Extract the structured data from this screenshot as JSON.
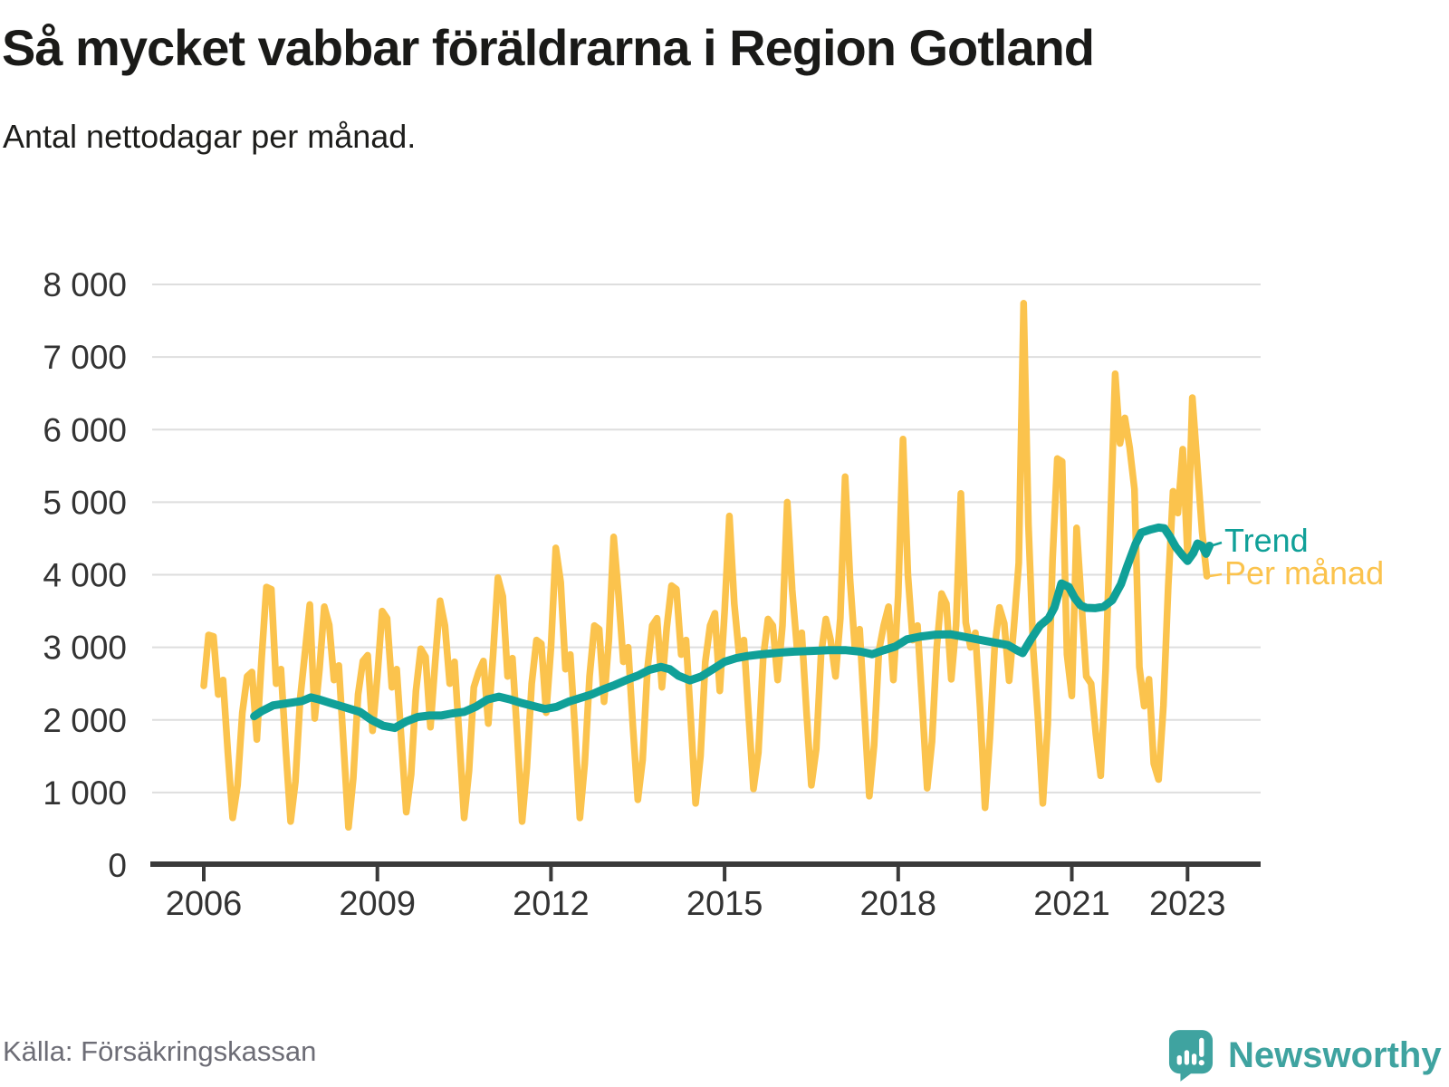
{
  "title": "Så mycket vabbar föräldrarna i Region Gotland",
  "subtitle": "Antal nettodagar per månad.",
  "source": "Källa: Försäkringskassan",
  "brand": {
    "name": "Newsworthy",
    "color": "#3fa3a0"
  },
  "chart_data": {
    "type": "line",
    "title": "Så mycket vabbar föräldrarna i Region Gotland",
    "xlabel": "",
    "ylabel": "Antal nettodagar per månad",
    "ylim": [
      0,
      8000
    ],
    "xlim": [
      2005,
      2024.2
    ],
    "grid": "horizontal",
    "legend_position": "right-of-line-end",
    "x_ticks": [
      {
        "value": 2006,
        "label": "2006"
      },
      {
        "value": 2009,
        "label": "2009"
      },
      {
        "value": 2012,
        "label": "2012"
      },
      {
        "value": 2015,
        "label": "2015"
      },
      {
        "value": 2018,
        "label": "2018"
      },
      {
        "value": 2021,
        "label": "2021"
      },
      {
        "value": 2023,
        "label": "2023"
      }
    ],
    "y_ticks": [
      {
        "value": 0,
        "label": "0"
      },
      {
        "value": 1000,
        "label": "1 000"
      },
      {
        "value": 2000,
        "label": "2 000"
      },
      {
        "value": 3000,
        "label": "3 000"
      },
      {
        "value": 4000,
        "label": "4 000"
      },
      {
        "value": 5000,
        "label": "5 000"
      },
      {
        "value": 6000,
        "label": "6 000"
      },
      {
        "value": 7000,
        "label": "7 000"
      },
      {
        "value": 8000,
        "label": "8 000"
      }
    ],
    "legend": [
      {
        "label": "Trend",
        "color": "#10a098"
      },
      {
        "label": "Per månad",
        "color": "#fbc34d"
      }
    ],
    "series": [
      {
        "name": "Per månad",
        "color": "#fbc34d",
        "unit": "nettodagar",
        "cadence": "monthly",
        "monthly": [
          {
            "year": 2006,
            "values": [
              2470,
              3170,
              3150,
              2350,
              2550,
              1550,
              650,
              1100,
              2100,
              2600,
              2660,
              1730
            ]
          },
          {
            "year": 2007,
            "values": [
              2850,
              3830,
              3800,
              2500,
              2700,
              1600,
              600,
              1150,
              2300,
              2930,
              3590,
              2020
            ]
          },
          {
            "year": 2008,
            "values": [
              2700,
              3560,
              3310,
              2550,
              2750,
              1650,
              520,
              1200,
              2350,
              2810,
              2890,
              1850
            ]
          },
          {
            "year": 2009,
            "values": [
              2600,
              3500,
              3400,
              2450,
              2700,
              1700,
              730,
              1250,
              2400,
              2980,
              2870,
              1900
            ]
          },
          {
            "year": 2010,
            "values": [
              2810,
              3640,
              3300,
              2500,
              2800,
              1750,
              650,
              1300,
              2450,
              2660,
              2810,
              1950
            ]
          },
          {
            "year": 2011,
            "values": [
              2900,
              3960,
              3700,
              2600,
              2850,
              1800,
              600,
              1350,
              2500,
              3100,
              3050,
              2100
            ]
          },
          {
            "year": 2012,
            "values": [
              3000,
              4370,
              3900,
              2700,
              2900,
              1850,
              650,
              1400,
              2600,
              3300,
              3250,
              2250
            ]
          },
          {
            "year": 2013,
            "values": [
              3100,
              4520,
              3720,
              2800,
              3000,
              1900,
              900,
              1450,
              2700,
              3300,
              3400,
              2450
            ]
          },
          {
            "year": 2014,
            "values": [
              3270,
              3850,
              3800,
              2900,
              3100,
              2000,
              850,
              1500,
              2800,
              3300,
              3470,
              2400
            ]
          },
          {
            "year": 2015,
            "values": [
              3490,
              4810,
              3600,
              2900,
              3100,
              2050,
              1050,
              1550,
              2850,
              3390,
              3300,
              2550
            ]
          },
          {
            "year": 2016,
            "values": [
              3300,
              5000,
              3800,
              3000,
              3200,
              2100,
              1100,
              1600,
              2900,
              3390,
              3100,
              2600
            ]
          },
          {
            "year": 2017,
            "values": [
              3400,
              5350,
              3940,
              3000,
              3250,
              2100,
              950,
              1650,
              2950,
              3300,
              3560,
              2550
            ]
          },
          {
            "year": 2018,
            "values": [
              3710,
              5870,
              4000,
              3100,
              3300,
              2200,
              1060,
              1700,
              3000,
              3740,
              3600,
              2560
            ]
          },
          {
            "year": 2019,
            "values": [
              3300,
              5120,
              3340,
              3000,
              3200,
              2150,
              790,
              1750,
              3000,
              3550,
              3330,
              2540
            ]
          },
          {
            "year": 2020,
            "values": [
              3290,
              4160,
              7740,
              4690,
              2970,
              2020,
              850,
              1940,
              4200,
              5600,
              5560,
              2900
            ]
          },
          {
            "year": 2021,
            "values": [
              2330,
              4645,
              3600,
              2600,
              2500,
              1800,
              1230,
              2680,
              4700,
              6770,
              5810,
              6160
            ]
          },
          {
            "year": 2022,
            "values": [
              5750,
              5180,
              2730,
              2190,
              2560,
              1400,
              1180,
              2200,
              3850,
              5150,
              4850,
              5730
            ]
          },
          {
            "year": 2023,
            "values": [
              4270,
              6440,
              5520,
              4600,
              3980
            ]
          }
        ]
      },
      {
        "name": "Trend",
        "color": "#10a098",
        "unit": "nettodagar",
        "cadence": "smoothed",
        "points": [
          [
            2006.87,
            2050
          ],
          [
            2007.0,
            2120
          ],
          [
            2007.2,
            2200
          ],
          [
            2007.45,
            2230
          ],
          [
            2007.7,
            2260
          ],
          [
            2007.85,
            2310
          ],
          [
            2008.0,
            2280
          ],
          [
            2008.2,
            2230
          ],
          [
            2008.45,
            2170
          ],
          [
            2008.7,
            2110
          ],
          [
            2008.9,
            2000
          ],
          [
            2009.1,
            1920
          ],
          [
            2009.3,
            1890
          ],
          [
            2009.5,
            1980
          ],
          [
            2009.7,
            2040
          ],
          [
            2009.9,
            2060
          ],
          [
            2010.1,
            2060
          ],
          [
            2010.3,
            2090
          ],
          [
            2010.5,
            2110
          ],
          [
            2010.7,
            2180
          ],
          [
            2010.9,
            2280
          ],
          [
            2011.1,
            2320
          ],
          [
            2011.3,
            2280
          ],
          [
            2011.5,
            2230
          ],
          [
            2011.7,
            2190
          ],
          [
            2011.9,
            2150
          ],
          [
            2012.1,
            2180
          ],
          [
            2012.3,
            2250
          ],
          [
            2012.5,
            2300
          ],
          [
            2012.7,
            2350
          ],
          [
            2012.9,
            2420
          ],
          [
            2013.1,
            2480
          ],
          [
            2013.3,
            2550
          ],
          [
            2013.5,
            2610
          ],
          [
            2013.7,
            2690
          ],
          [
            2013.9,
            2730
          ],
          [
            2014.05,
            2700
          ],
          [
            2014.2,
            2610
          ],
          [
            2014.4,
            2545
          ],
          [
            2014.6,
            2600
          ],
          [
            2014.8,
            2700
          ],
          [
            2015.0,
            2800
          ],
          [
            2015.2,
            2850
          ],
          [
            2015.4,
            2880
          ],
          [
            2015.6,
            2900
          ],
          [
            2015.8,
            2915
          ],
          [
            2016.0,
            2930
          ],
          [
            2016.2,
            2940
          ],
          [
            2016.5,
            2950
          ],
          [
            2016.8,
            2960
          ],
          [
            2017.1,
            2960
          ],
          [
            2017.35,
            2940
          ],
          [
            2017.55,
            2905
          ],
          [
            2017.75,
            2960
          ],
          [
            2017.95,
            3010
          ],
          [
            2018.15,
            3110
          ],
          [
            2018.4,
            3150
          ],
          [
            2018.65,
            3175
          ],
          [
            2018.9,
            3180
          ],
          [
            2019.1,
            3150
          ],
          [
            2019.3,
            3120
          ],
          [
            2019.5,
            3090
          ],
          [
            2019.7,
            3060
          ],
          [
            2019.9,
            3030
          ],
          [
            2020.05,
            2960
          ],
          [
            2020.15,
            2920
          ],
          [
            2020.3,
            3120
          ],
          [
            2020.45,
            3300
          ],
          [
            2020.6,
            3400
          ],
          [
            2020.7,
            3550
          ],
          [
            2020.82,
            3880
          ],
          [
            2020.95,
            3830
          ],
          [
            2021.05,
            3680
          ],
          [
            2021.15,
            3580
          ],
          [
            2021.25,
            3545
          ],
          [
            2021.4,
            3540
          ],
          [
            2021.55,
            3560
          ],
          [
            2021.7,
            3650
          ],
          [
            2021.85,
            3870
          ],
          [
            2021.95,
            4100
          ],
          [
            2022.1,
            4420
          ],
          [
            2022.2,
            4580
          ],
          [
            2022.35,
            4620
          ],
          [
            2022.5,
            4650
          ],
          [
            2022.6,
            4640
          ],
          [
            2022.7,
            4520
          ],
          [
            2022.8,
            4380
          ],
          [
            2022.9,
            4280
          ],
          [
            2023.0,
            4190
          ],
          [
            2023.1,
            4300
          ],
          [
            2023.17,
            4430
          ],
          [
            2023.25,
            4400
          ],
          [
            2023.32,
            4290
          ],
          [
            2023.38,
            4400
          ]
        ]
      }
    ]
  }
}
